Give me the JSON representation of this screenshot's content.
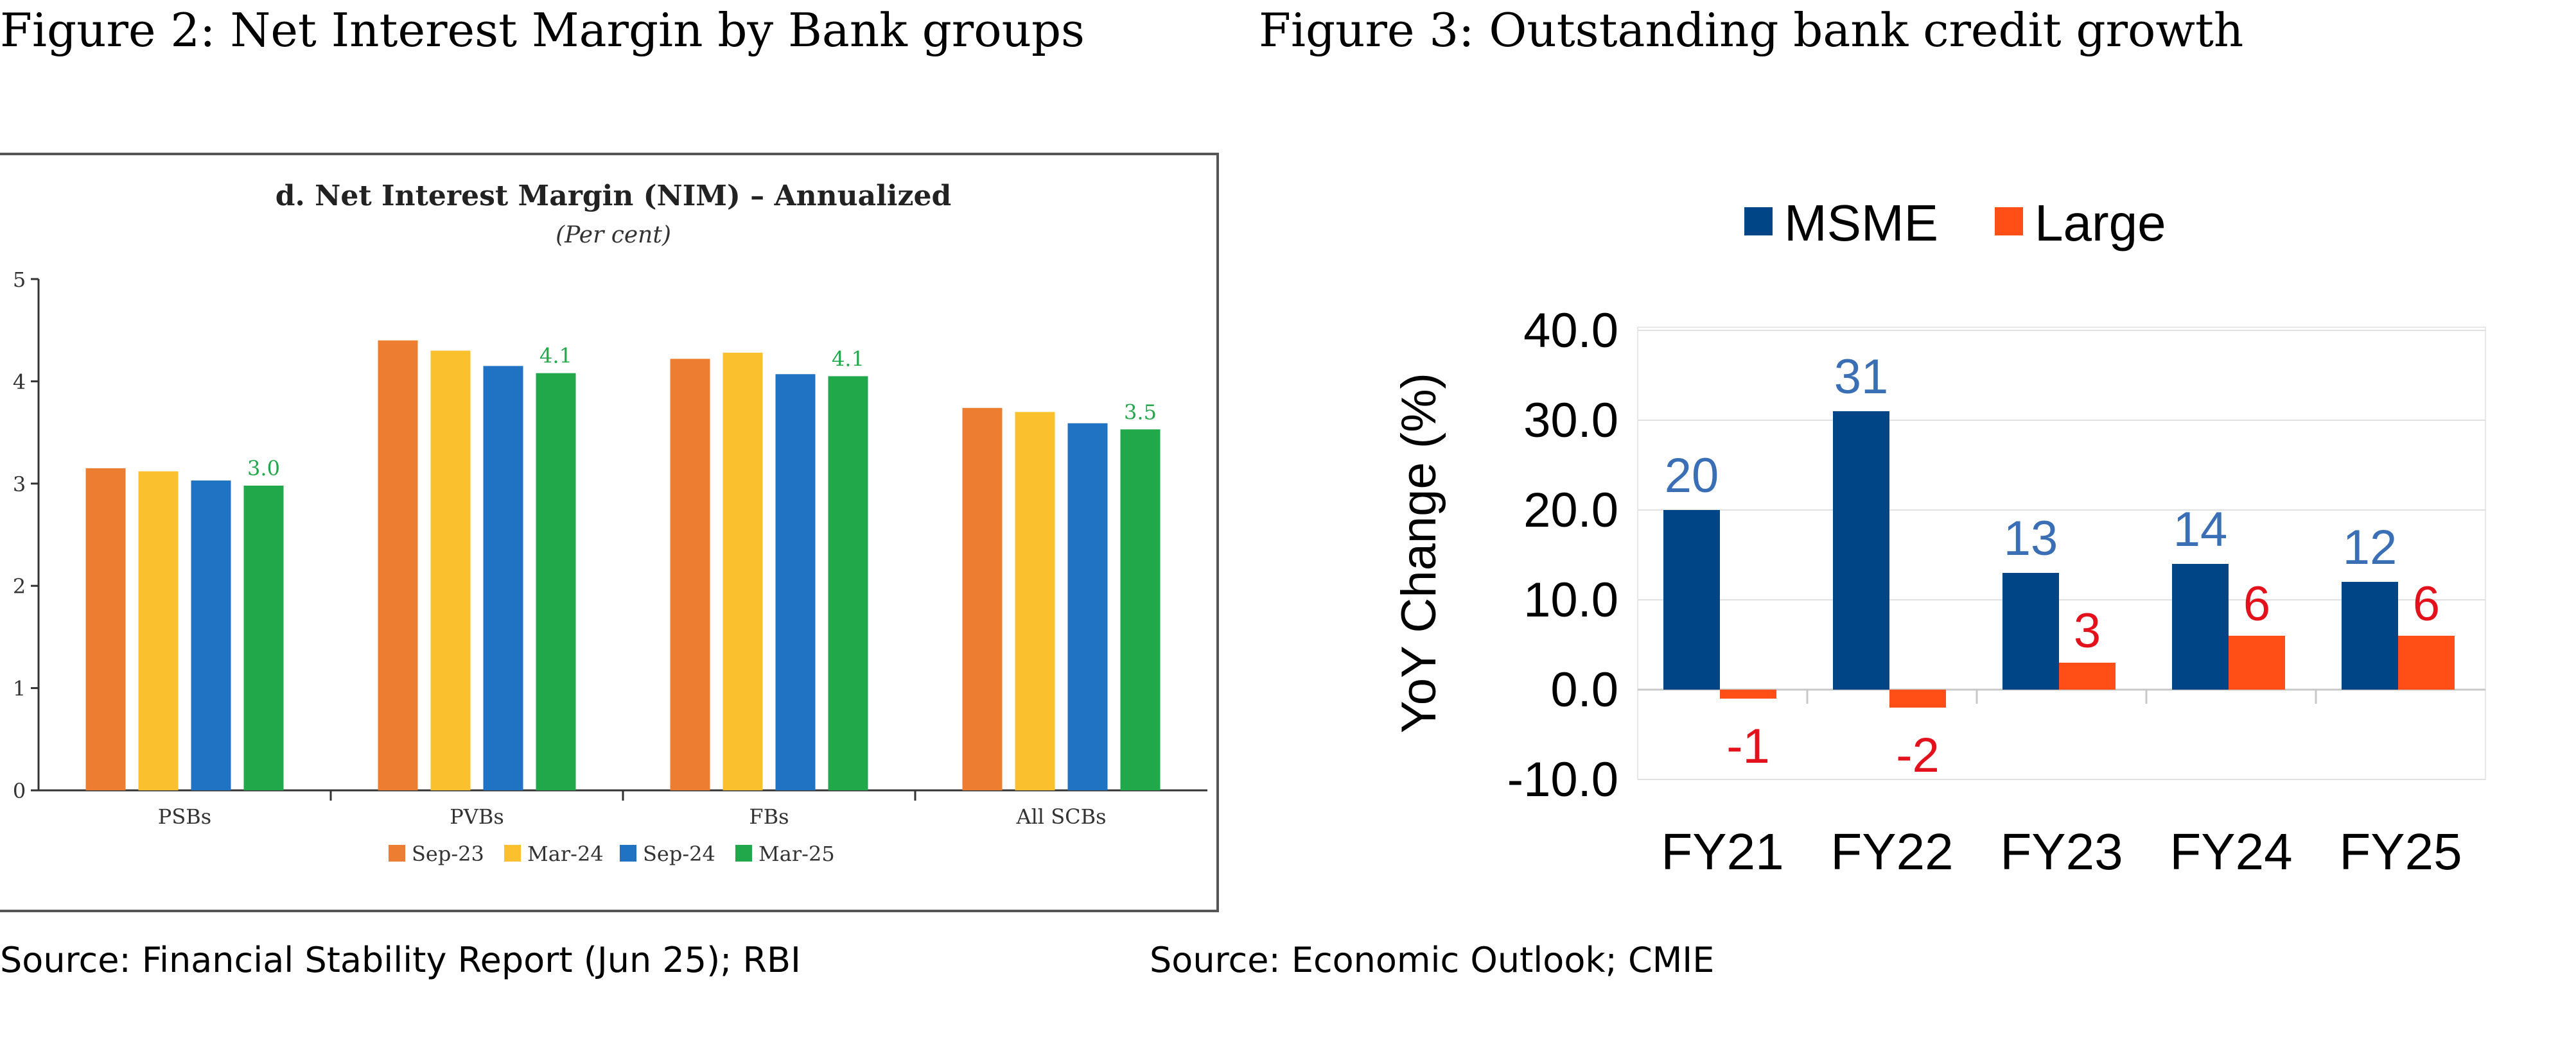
{
  "figures": {
    "left": {
      "heading": "Figure 2: Net Interest Margin by Bank groups",
      "source": "Source: Financial Stability Report (Jun 25); RBI"
    },
    "right": {
      "heading": "Figure 3: Outstanding bank credit growth",
      "source": "Source: Economic Outlook; CMIE"
    }
  },
  "colors": {
    "sep23": "#ED7D31",
    "mar24": "#FBC02D",
    "sep24": "#1F73C2",
    "mar25": "#21A84A",
    "green_label": "#21A84A",
    "msme": "#004687",
    "large": "#FF4F16",
    "msme_label": "#3A6EB5",
    "large_label": "#E3111C",
    "axis": "#333333",
    "grid": "#E0E0E0"
  },
  "chart_data": [
    {
      "type": "bar",
      "title": "d. Net Interest Margin (NIM) – Annualized",
      "subtitle": "(Per cent)",
      "categories": [
        "PSBs",
        "PVBs",
        "FBs",
        "All SCBs"
      ],
      "series": [
        {
          "name": "Sep-23",
          "values": [
            3.15,
            4.4,
            4.22,
            3.74
          ]
        },
        {
          "name": "Mar-24",
          "values": [
            3.12,
            4.3,
            4.28,
            3.7
          ]
        },
        {
          "name": "Sep-24",
          "values": [
            3.03,
            4.15,
            4.07,
            3.59
          ]
        },
        {
          "name": "Mar-25",
          "values": [
            2.98,
            4.08,
            4.05,
            3.53
          ]
        }
      ],
      "data_labels": {
        "series": "Mar-25",
        "labels": [
          "3.0",
          "4.1",
          "4.1",
          "3.5"
        ]
      },
      "yticks": [
        "0",
        "1",
        "2",
        "3",
        "4",
        "5"
      ],
      "ylim": [
        0,
        5
      ],
      "legend_position": "bottom"
    },
    {
      "type": "bar",
      "title": "",
      "categories": [
        "FY21",
        "FY22",
        "FY23",
        "FY24",
        "FY25"
      ],
      "series": [
        {
          "name": "MSME",
          "values": [
            20,
            31,
            13,
            14,
            12
          ],
          "labels": [
            "20",
            "31",
            "13",
            "14",
            "12"
          ]
        },
        {
          "name": "Large",
          "values": [
            -1,
            -2,
            3,
            6,
            6
          ],
          "labels": [
            "-1",
            "-2",
            "3",
            "6",
            "6"
          ]
        }
      ],
      "ylabel": "YoY Change (%)",
      "yticks": [
        "-10.0",
        "0.0",
        "10.0",
        "20.0",
        "30.0",
        "40.0"
      ],
      "ylim": [
        -10,
        40
      ],
      "legend_position": "top"
    }
  ]
}
